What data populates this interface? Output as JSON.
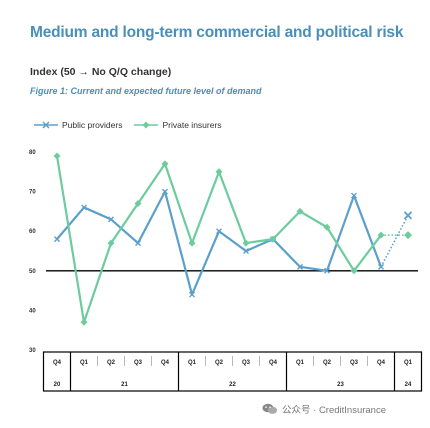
{
  "title": "Medium and long-term commercial and political risk",
  "subtitle": "Index (50 → No Q/Q change)",
  "figure_caption": "Figure 1: Current and expected future level of demand",
  "watermark": {
    "text": "公众号 · CreditInsurance",
    "icon": "wechat-icon"
  },
  "colors": {
    "public": "#5b9fcb",
    "private": "#6dcc9d",
    "title": "#4a8fb8",
    "baseline": "#000000"
  },
  "chart_data": {
    "type": "line",
    "title": "Figure 1: Current and expected future level of demand",
    "ylabel": "Index (50 → No Q/Q change)",
    "xlabel": "",
    "ylim": [
      30,
      80
    ],
    "yticks": [
      30,
      40,
      50,
      60,
      70,
      80
    ],
    "reference_line": 50,
    "x_quarters": [
      "Q4",
      "Q1",
      "Q2",
      "Q3",
      "Q4",
      "Q1",
      "Q2",
      "Q3",
      "Q4",
      "Q1",
      "Q2",
      "Q3",
      "Q4",
      "Q1"
    ],
    "year_groups": [
      {
        "label": "20",
        "start": 0,
        "end": 0
      },
      {
        "label": "21",
        "start": 1,
        "end": 4
      },
      {
        "label": "22",
        "start": 5,
        "end": 8
      },
      {
        "label": "23",
        "start": 9,
        "end": 12
      },
      {
        "label": "24",
        "start": 13,
        "end": 13
      }
    ],
    "series": [
      {
        "name": "Public providers",
        "marker": "x",
        "values": [
          58,
          66,
          63,
          57,
          70,
          44,
          60,
          55,
          58,
          51,
          50,
          69,
          51
        ],
        "forecast": [
          51,
          64
        ]
      },
      {
        "name": "Private insurers",
        "marker": "diamond",
        "values": [
          79,
          37,
          57,
          67,
          77,
          57,
          75,
          57,
          58,
          65,
          61,
          50,
          59
        ],
        "forecast": [
          59,
          59
        ]
      }
    ],
    "legend": {
      "placement": "top-left",
      "entries": [
        "Public providers",
        "Private insurers"
      ]
    }
  }
}
